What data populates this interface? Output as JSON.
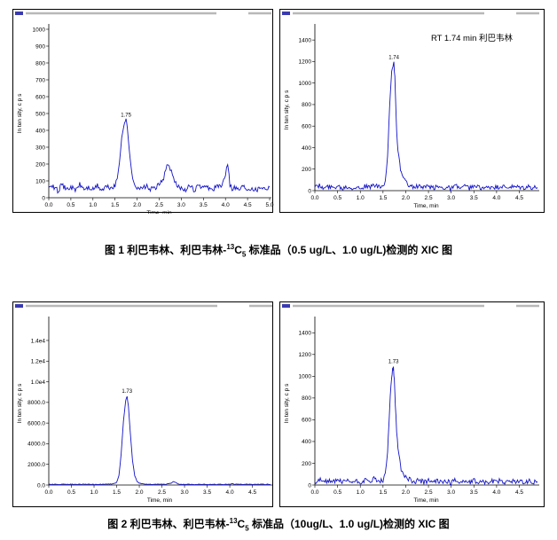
{
  "figure1": {
    "caption": {
      "prefix": "图 1  利巴韦林、利巴韦林-",
      "sup": "13",
      "c": "C",
      "sub": "5",
      "suffix": " 标准品（0.5 ug/L、1.0 ug/L)检测的 XIC 图"
    }
  },
  "figure2": {
    "caption": {
      "prefix": "图 2  利巴韦林、利巴韦林-",
      "sup": "13",
      "c": "C",
      "sub": "5",
      "suffix": " 标准品（10ug/L、1.0 ug/L)检测的 XIC 图"
    }
  },
  "chart_data": [
    {
      "id": "p1",
      "type": "line",
      "ylabel": "In ten sity, c p s",
      "xlabel": "Time, min",
      "xlim": [
        0,
        5.0
      ],
      "ylim": [
        0,
        1000
      ],
      "xticks": [
        "0.0",
        "0.5",
        "1.0",
        "1.5",
        "2.0",
        "2.5",
        "3.0",
        "3.5",
        "4.0",
        "4.5",
        "5.0"
      ],
      "xtick_values": [
        0,
        0.5,
        1.0,
        1.5,
        2.0,
        2.5,
        3.0,
        3.5,
        4.0,
        4.5,
        5.0
      ],
      "yticks": [
        "0",
        "100",
        "200",
        "300",
        "400",
        "500",
        "600",
        "700",
        "800",
        "900",
        "1000"
      ],
      "ytick_values": [
        0,
        100,
        200,
        300,
        400,
        500,
        600,
        700,
        800,
        900,
        1000
      ],
      "color": "#1414c8",
      "peak_label": "1.75",
      "peak_x": 1.75,
      "peak_y": 460,
      "annotation": "",
      "series": [
        {
          "x": [
            0,
            0.1,
            0.2,
            0.3,
            0.4,
            0.5,
            0.6,
            0.7,
            0.8,
            0.9,
            1.0,
            1.1,
            1.2,
            1.3,
            1.4,
            1.5,
            1.55,
            1.6,
            1.65,
            1.7,
            1.73,
            1.75,
            1.78,
            1.82,
            1.86,
            1.9,
            1.95,
            2.0,
            2.1,
            2.2,
            2.3,
            2.4,
            2.5,
            2.6,
            2.65,
            2.7,
            2.75,
            2.8,
            2.85,
            2.9,
            3.0,
            3.1,
            3.2,
            3.3,
            3.4,
            3.5,
            3.6,
            3.7,
            3.8,
            3.9,
            4.0,
            4.05,
            4.08,
            4.1,
            4.15,
            4.2,
            4.3,
            4.4,
            4.5,
            4.6,
            4.7,
            4.8,
            4.9,
            5.0
          ],
          "y": [
            55,
            68,
            42,
            75,
            50,
            64,
            45,
            78,
            52,
            60,
            48,
            72,
            44,
            66,
            58,
            70,
            110,
            210,
            360,
            440,
            455,
            460,
            420,
            300,
            180,
            110,
            80,
            65,
            52,
            70,
            48,
            60,
            75,
            120,
            170,
            195,
            175,
            130,
            95,
            70,
            58,
            50,
            68,
            45,
            72,
            55,
            62,
            48,
            70,
            60,
            140,
            210,
            150,
            80,
            55,
            65,
            48,
            70,
            52,
            60,
            45,
            68,
            55,
            62
          ]
        }
      ]
    },
    {
      "id": "p2",
      "type": "line",
      "ylabel": "In ten sity, c p s",
      "xlabel": "Time, min",
      "xlim": [
        0,
        4.9
      ],
      "ylim": [
        0,
        1500
      ],
      "xticks": [
        "0.0",
        "0.5",
        "1.0",
        "1.5",
        "2.0",
        "2.5",
        "3.0",
        "3.5",
        "4.0",
        "4.5"
      ],
      "xtick_values": [
        0,
        0.5,
        1.0,
        1.5,
        2.0,
        2.5,
        3.0,
        3.5,
        4.0,
        4.5
      ],
      "yticks": [
        "0",
        "200",
        "400",
        "600",
        "800",
        "1000",
        "1200",
        "1400"
      ],
      "ytick_values": [
        0,
        200,
        400,
        600,
        800,
        1000,
        1200,
        1400
      ],
      "color": "#1414c8",
      "peak_label": "1.74",
      "peak_x": 1.74,
      "peak_y": 1190,
      "annotation": "RT 1.74 min 利巴韦林",
      "series": [
        {
          "x": [
            0,
            0.1,
            0.2,
            0.3,
            0.4,
            0.5,
            0.6,
            0.7,
            0.8,
            0.9,
            1.0,
            1.1,
            1.2,
            1.3,
            1.4,
            1.5,
            1.55,
            1.6,
            1.63,
            1.66,
            1.69,
            1.72,
            1.74,
            1.76,
            1.78,
            1.8,
            1.83,
            1.87,
            1.9,
            1.95,
            2.0,
            2.1,
            2.2,
            2.3,
            2.4,
            2.5,
            2.6,
            2.7,
            2.8,
            2.9,
            3.0,
            3.1,
            3.2,
            3.3,
            3.4,
            3.5,
            3.6,
            3.7,
            3.8,
            3.9,
            4.0,
            4.1,
            4.2,
            4.3,
            4.4,
            4.5,
            4.6,
            4.7,
            4.8,
            4.9
          ],
          "y": [
            30,
            45,
            20,
            38,
            25,
            50,
            22,
            40,
            28,
            35,
            24,
            42,
            26,
            55,
            30,
            40,
            80,
            300,
            620,
            900,
            1100,
            1170,
            1190,
            1050,
            820,
            560,
            360,
            240,
            160,
            110,
            75,
            45,
            30,
            42,
            25,
            38,
            22,
            40,
            28,
            35,
            20,
            44,
            26,
            36,
            24,
            40,
            28,
            32,
            20,
            38,
            25,
            42,
            22,
            34,
            28,
            30,
            24,
            36,
            22,
            30
          ]
        }
      ]
    },
    {
      "id": "p3",
      "type": "line",
      "ylabel": "In ten sity, c p s",
      "xlabel": "Time, min",
      "xlim": [
        0,
        4.9
      ],
      "ylim": [
        0,
        15800
      ],
      "xticks": [
        "0.0",
        "0.5",
        "1.0",
        "1.5",
        "2.0",
        "2.5",
        "3.0",
        "3.5",
        "4.0",
        "4.5"
      ],
      "xtick_values": [
        0,
        0.5,
        1.0,
        1.5,
        2.0,
        2.5,
        3.0,
        3.5,
        4.0,
        4.5
      ],
      "yticks": [
        "0.0",
        "2000.0",
        "4000.0",
        "6000.0",
        "8000.0",
        "1.0e4",
        "1.2e4",
        "1.4e4"
      ],
      "ytick_values": [
        0,
        2000,
        4000,
        6000,
        8000,
        10000,
        12000,
        14000
      ],
      "color": "#1414c8",
      "peak_label": "1.73",
      "peak_x": 1.73,
      "peak_y": 8600,
      "annotation": "",
      "series": [
        {
          "x": [
            0,
            0.5,
            1.0,
            1.4,
            1.5,
            1.55,
            1.6,
            1.65,
            1.7,
            1.73,
            1.76,
            1.8,
            1.85,
            1.9,
            1.95,
            2.0,
            2.1,
            2.3,
            2.6,
            2.7,
            2.75,
            2.8,
            2.85,
            2.9,
            3.2,
            3.6,
            4.0,
            4.05,
            4.1,
            4.5,
            4.9
          ],
          "y": [
            60,
            70,
            60,
            100,
            250,
            900,
            3000,
            6200,
            8200,
            8600,
            7600,
            5200,
            2400,
            900,
            350,
            180,
            90,
            70,
            80,
            180,
            350,
            250,
            120,
            70,
            60,
            60,
            60,
            160,
            70,
            60,
            60
          ]
        }
      ]
    },
    {
      "id": "p4",
      "type": "line",
      "ylabel": "In ten sity, c p s",
      "xlabel": "Time, min",
      "xlim": [
        0,
        4.9
      ],
      "ylim": [
        0,
        1500
      ],
      "xticks": [
        "0.0",
        "0.5",
        "1.0",
        "1.5",
        "2.0",
        "2.5",
        "3.0",
        "3.5",
        "4.0",
        "4.5"
      ],
      "xtick_values": [
        0,
        0.5,
        1.0,
        1.5,
        2.0,
        2.5,
        3.0,
        3.5,
        4.0,
        4.5
      ],
      "yticks": [
        "0",
        "200",
        "400",
        "600",
        "800",
        "1000",
        "1200",
        "1400"
      ],
      "ytick_values": [
        0,
        200,
        400,
        600,
        800,
        1000,
        1200,
        1400
      ],
      "color": "#1414c8",
      "peak_label": "1.73",
      "peak_x": 1.73,
      "peak_y": 1090,
      "annotation": "",
      "series": [
        {
          "x": [
            0,
            0.1,
            0.2,
            0.3,
            0.4,
            0.5,
            0.6,
            0.7,
            0.8,
            0.9,
            1.0,
            1.1,
            1.2,
            1.3,
            1.4,
            1.5,
            1.55,
            1.6,
            1.63,
            1.66,
            1.69,
            1.71,
            1.73,
            1.75,
            1.77,
            1.8,
            1.83,
            1.87,
            1.9,
            1.95,
            2.0,
            2.1,
            2.2,
            2.3,
            2.4,
            2.5,
            2.6,
            2.7,
            2.8,
            2.9,
            3.0,
            3.1,
            3.2,
            3.3,
            3.4,
            3.5,
            3.6,
            3.7,
            3.8,
            3.9,
            4.0,
            4.1,
            4.2,
            4.3,
            4.4,
            4.5,
            4.6,
            4.7,
            4.8,
            4.9
          ],
          "y": [
            30,
            48,
            22,
            40,
            26,
            52,
            24,
            38,
            30,
            36,
            26,
            44,
            28,
            60,
            32,
            42,
            90,
            280,
            560,
            820,
            1000,
            1060,
            1090,
            950,
            740,
            500,
            330,
            230,
            150,
            100,
            70,
            48,
            30,
            44,
            26,
            40,
            22,
            42,
            30,
            36,
            22,
            46,
            28,
            38,
            24,
            42,
            30,
            34,
            22,
            40,
            26,
            44,
            24,
            36,
            30,
            32,
            26,
            38,
            24,
            32
          ]
        }
      ]
    }
  ]
}
